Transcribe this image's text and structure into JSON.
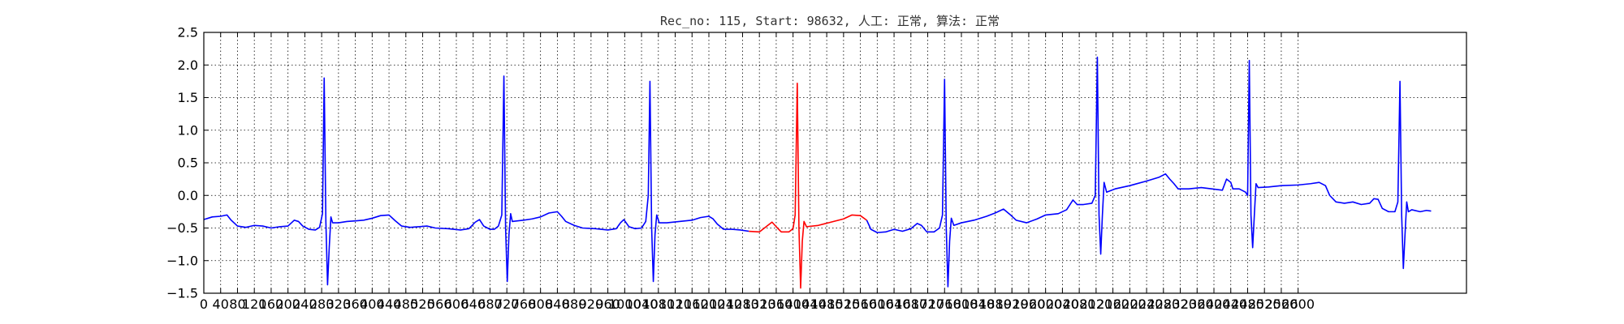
{
  "chart_data": {
    "type": "line",
    "title": "Rec_no: 115, Start: 98632, 人工: 正常, 算法: 正常",
    "xlabel": "",
    "ylabel": "",
    "xlim": [
      0,
      3000
    ],
    "ylim": [
      -1.5,
      2.5
    ],
    "grid": true,
    "x_ticks": [
      0,
      40,
      80,
      120,
      160,
      200,
      240,
      280,
      320,
      360,
      400,
      440,
      480,
      520,
      560,
      600,
      640,
      680,
      720,
      760,
      800,
      840,
      880,
      920,
      960,
      1000,
      1040,
      1080,
      1120,
      1160,
      1200,
      1240,
      1280,
      1320,
      1360,
      1400,
      1440,
      1480,
      1520,
      1560,
      1600,
      1640,
      1680,
      1720,
      1760,
      1800,
      1840,
      1880,
      1920,
      1960,
      2000,
      2040,
      2080,
      2120,
      2160,
      2200,
      2240,
      2280,
      2320,
      2360,
      2400,
      2440,
      2480,
      2520,
      2560,
      2600
    ],
    "y_ticks": [
      2.5,
      2.0,
      1.5,
      1.0,
      0.5,
      0.0,
      -0.5,
      -1.0,
      -1.5
    ],
    "y_tick_labels": [
      "2.5",
      "2.0",
      "1.5",
      "1.0",
      "0.5",
      "0.0",
      "−0.5",
      "−1.0",
      "−1.5"
    ],
    "series": [
      {
        "color": "#0000ff",
        "points": [
          [
            0,
            -0.37
          ],
          [
            20,
            -0.33
          ],
          [
            40,
            -0.32
          ],
          [
            55,
            -0.3
          ],
          [
            65,
            -0.38
          ],
          [
            80,
            -0.47
          ],
          [
            100,
            -0.49
          ],
          [
            120,
            -0.46
          ],
          [
            140,
            -0.47
          ],
          [
            160,
            -0.5
          ],
          [
            180,
            -0.48
          ],
          [
            200,
            -0.47
          ],
          [
            215,
            -0.38
          ],
          [
            225,
            -0.4
          ],
          [
            235,
            -0.47
          ],
          [
            250,
            -0.52
          ],
          [
            265,
            -0.53
          ],
          [
            275,
            -0.49
          ],
          [
            282,
            -0.28
          ],
          [
            286,
            1.8
          ],
          [
            290,
            -0.4
          ],
          [
            294,
            -1.37
          ],
          [
            298,
            -0.8
          ],
          [
            302,
            -0.33
          ],
          [
            306,
            -0.42
          ],
          [
            320,
            -0.42
          ],
          [
            340,
            -0.4
          ],
          [
            360,
            -0.39
          ],
          [
            380,
            -0.38
          ],
          [
            400,
            -0.35
          ],
          [
            420,
            -0.31
          ],
          [
            440,
            -0.3
          ],
          [
            455,
            -0.39
          ],
          [
            470,
            -0.47
          ],
          [
            490,
            -0.49
          ],
          [
            510,
            -0.48
          ],
          [
            530,
            -0.47
          ],
          [
            550,
            -0.5
          ],
          [
            580,
            -0.51
          ],
          [
            610,
            -0.53
          ],
          [
            630,
            -0.51
          ],
          [
            645,
            -0.41
          ],
          [
            655,
            -0.37
          ],
          [
            665,
            -0.47
          ],
          [
            680,
            -0.52
          ],
          [
            690,
            -0.52
          ],
          [
            700,
            -0.47
          ],
          [
            708,
            -0.3
          ],
          [
            713,
            1.83
          ],
          [
            717,
            -0.5
          ],
          [
            721,
            -1.32
          ],
          [
            725,
            -0.6
          ],
          [
            729,
            -0.28
          ],
          [
            733,
            -0.4
          ],
          [
            760,
            -0.38
          ],
          [
            780,
            -0.36
          ],
          [
            800,
            -0.33
          ],
          [
            820,
            -0.27
          ],
          [
            840,
            -0.25
          ],
          [
            850,
            -0.32
          ],
          [
            860,
            -0.4
          ],
          [
            880,
            -0.46
          ],
          [
            900,
            -0.5
          ],
          [
            930,
            -0.51
          ],
          [
            960,
            -0.53
          ],
          [
            980,
            -0.51
          ],
          [
            990,
            -0.42
          ],
          [
            998,
            -0.37
          ],
          [
            1010,
            -0.48
          ],
          [
            1025,
            -0.51
          ],
          [
            1040,
            -0.5
          ],
          [
            1050,
            -0.4
          ],
          [
            1056,
            0.0
          ],
          [
            1060,
            1.75
          ],
          [
            1064,
            -0.5
          ],
          [
            1068,
            -1.32
          ],
          [
            1072,
            -0.6
          ],
          [
            1076,
            -0.3
          ],
          [
            1082,
            -0.42
          ],
          [
            1100,
            -0.42
          ],
          [
            1130,
            -0.4
          ],
          [
            1160,
            -0.38
          ],
          [
            1180,
            -0.34
          ],
          [
            1200,
            -0.32
          ],
          [
            1210,
            -0.36
          ],
          [
            1220,
            -0.44
          ],
          [
            1235,
            -0.52
          ],
          [
            1255,
            -0.52
          ],
          [
            1275,
            -0.53
          ],
          [
            1295,
            -0.55
          ]
        ],
        "segments_note": "blue before red section"
      },
      {
        "color": "#ff0000",
        "points": [
          [
            1295,
            -0.55
          ],
          [
            1320,
            -0.56
          ],
          [
            1340,
            -0.46
          ],
          [
            1350,
            -0.41
          ],
          [
            1360,
            -0.48
          ],
          [
            1372,
            -0.56
          ],
          [
            1390,
            -0.56
          ],
          [
            1400,
            -0.51
          ],
          [
            1405,
            -0.3
          ],
          [
            1410,
            1.72
          ],
          [
            1414,
            -0.5
          ],
          [
            1418,
            -1.42
          ],
          [
            1422,
            -0.7
          ],
          [
            1426,
            -0.4
          ],
          [
            1432,
            -0.48
          ],
          [
            1460,
            -0.46
          ],
          [
            1490,
            -0.41
          ],
          [
            1520,
            -0.36
          ],
          [
            1540,
            -0.3
          ],
          [
            1560,
            -0.31
          ],
          [
            1575,
            -0.38
          ]
        ]
      },
      {
        "color": "#0000ff",
        "points": [
          [
            1575,
            -0.38
          ],
          [
            1585,
            -0.52
          ],
          [
            1600,
            -0.57
          ],
          [
            1620,
            -0.56
          ],
          [
            1640,
            -0.52
          ],
          [
            1660,
            -0.55
          ],
          [
            1680,
            -0.51
          ],
          [
            1695,
            -0.43
          ],
          [
            1705,
            -0.46
          ],
          [
            1718,
            -0.56
          ],
          [
            1735,
            -0.56
          ],
          [
            1748,
            -0.5
          ],
          [
            1755,
            -0.3
          ],
          [
            1760,
            1.78
          ],
          [
            1764,
            -0.5
          ],
          [
            1768,
            -1.4
          ],
          [
            1772,
            -0.7
          ],
          [
            1776,
            -0.35
          ],
          [
            1782,
            -0.46
          ],
          [
            1800,
            -0.42
          ],
          [
            1830,
            -0.38
          ],
          [
            1860,
            -0.32
          ],
          [
            1880,
            -0.27
          ],
          [
            1900,
            -0.21
          ],
          [
            1915,
            -0.29
          ],
          [
            1930,
            -0.38
          ],
          [
            1955,
            -0.42
          ],
          [
            1980,
            -0.36
          ],
          [
            2000,
            -0.3
          ],
          [
            2030,
            -0.28
          ],
          [
            2050,
            -0.22
          ],
          [
            2065,
            -0.07
          ],
          [
            2075,
            -0.14
          ],
          [
            2090,
            -0.14
          ],
          [
            2110,
            -0.12
          ],
          [
            2118,
            0.0
          ],
          [
            2123,
            2.12
          ],
          [
            2127,
            -0.3
          ],
          [
            2131,
            -0.9
          ],
          [
            2135,
            -0.3
          ],
          [
            2139,
            0.2
          ],
          [
            2145,
            0.05
          ],
          [
            2165,
            0.1
          ],
          [
            2200,
            0.15
          ],
          [
            2240,
            0.22
          ],
          [
            2270,
            0.28
          ],
          [
            2285,
            0.33
          ],
          [
            2295,
            0.25
          ],
          [
            2305,
            0.18
          ],
          [
            2315,
            0.1
          ],
          [
            2340,
            0.1
          ],
          [
            2370,
            0.12
          ],
          [
            2395,
            0.1
          ],
          [
            2420,
            0.08
          ],
          [
            2430,
            0.25
          ],
          [
            2440,
            0.2
          ],
          [
            2445,
            0.1
          ],
          [
            2460,
            0.1
          ],
          [
            2475,
            0.05
          ],
          [
            2480,
            0.0
          ],
          [
            2484,
            2.07
          ],
          [
            2488,
            -0.3
          ],
          [
            2492,
            -0.8
          ],
          [
            2496,
            -0.3
          ],
          [
            2500,
            0.18
          ],
          [
            2505,
            0.12
          ],
          [
            2530,
            0.13
          ],
          [
            2560,
            0.15
          ],
          [
            2600,
            0.16
          ],
          [
            2630,
            0.18
          ],
          [
            2650,
            0.2
          ],
          [
            2665,
            0.15
          ],
          [
            2675,
            0.0
          ],
          [
            2690,
            -0.1
          ],
          [
            2710,
            -0.12
          ],
          [
            2730,
            -0.1
          ],
          [
            2750,
            -0.14
          ],
          [
            2770,
            -0.12
          ],
          [
            2780,
            -0.05
          ],
          [
            2790,
            -0.06
          ],
          [
            2800,
            -0.2
          ],
          [
            2815,
            -0.25
          ],
          [
            2830,
            -0.25
          ],
          [
            2837,
            -0.1
          ],
          [
            2842,
            1.75
          ],
          [
            2846,
            -0.3
          ],
          [
            2850,
            -1.12
          ],
          [
            2854,
            -0.6
          ],
          [
            2858,
            -0.1
          ],
          [
            2862,
            -0.25
          ],
          [
            2870,
            -0.22
          ],
          [
            2890,
            -0.25
          ],
          [
            2905,
            -0.23
          ],
          [
            2916,
            -0.24
          ]
        ]
      }
    ]
  }
}
